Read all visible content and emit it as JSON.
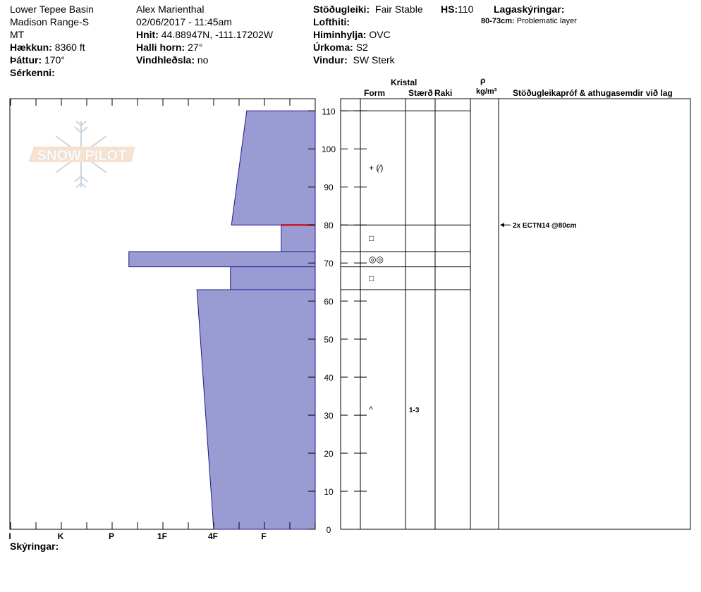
{
  "header": {
    "location": "Lower Tepee Basin",
    "range": "Madison Range-S",
    "state": "MT",
    "elevation_label": "Hækkun:",
    "elevation_value": "8360 ft",
    "aspect_label": "Þáttur:",
    "aspect_value": "170°",
    "features_label": "Sérkenni:",
    "observer": "Alex Marienthal",
    "datetime": "02/06/2017 - 11:45am",
    "coords_label": "Hnit:",
    "coords_value": "44.88947N, -111.17202W",
    "slope_label": "Halli horn:",
    "slope_value": "27°",
    "wind_loading_label": "Vindhleðsla:",
    "wind_loading_value": "no",
    "stability_label": "Stöðugleiki:",
    "stability_value": "Fair Stable",
    "hs_label": "HS:",
    "hs_value": "110",
    "air_temp_label": "Lofthiti:",
    "sky_label": "Himinhylja:",
    "sky_value": "OVC",
    "precip_label": "Úrkoma:",
    "precip_value": "S2",
    "wind_label": "Vindur:",
    "wind_value": "SW Sterk",
    "layer_notes_label": "Lagaskýringar:",
    "layer_note_range": "80-73cm:",
    "layer_note_text": "Problematic layer"
  },
  "logo_text": "SNOW PILOT",
  "legend_label": "Skýringar:",
  "columns": {
    "crystal": "Kristal",
    "form": "Form",
    "size": "Stærð",
    "moisture": "Raki",
    "rho": "ρ",
    "density_unit": "kg/m³",
    "tests": "Stöðugleikapróf & athugasemdir við lag"
  },
  "chart_data": {
    "type": "bar",
    "orientation": "horizontal",
    "x_categories": [
      "I",
      "K",
      "P",
      "1F",
      "4F",
      "F"
    ],
    "y_ticks": [
      0,
      10,
      20,
      30,
      40,
      50,
      60,
      70,
      80,
      90,
      100,
      110
    ],
    "ylim": [
      0,
      110
    ],
    "x_category_positions": {
      "F": 1,
      "4F": 2,
      "1F": 3,
      "P": 4,
      "K": 5,
      "I": 6
    },
    "xlim": [
      0,
      6
    ],
    "hardness_profile": [
      {
        "top": 110,
        "bottom": 80,
        "hardness_top": 1.35,
        "hardness_bottom": 1.65
      },
      {
        "top": 80,
        "bottom": 73,
        "hardness_top": 0.67,
        "hardness_bottom": 0.67
      },
      {
        "top": 73,
        "bottom": 69,
        "hardness_top": 3.67,
        "hardness_bottom": 3.67
      },
      {
        "top": 69,
        "bottom": 63,
        "hardness_top": 1.67,
        "hardness_bottom": 1.67
      },
      {
        "top": 63,
        "bottom": 0,
        "hardness_top": 2.33,
        "hardness_bottom": 2.0
      }
    ],
    "fill_color": "#9b9bd4",
    "edge_color": "#1a1a8c",
    "problem_layer_color": "#cc0000",
    "problem_layer_height": 80,
    "layer_boundaries": [
      110,
      80,
      73,
      69,
      63
    ],
    "crystals": [
      {
        "height": 95,
        "form": "+ (⁄)",
        "size": ""
      },
      {
        "height": 76.5,
        "form": "□",
        "size": ""
      },
      {
        "height": 71,
        "form": "◎◎",
        "size": ""
      },
      {
        "height": 66,
        "form": "□",
        "size": ""
      },
      {
        "height": 31.5,
        "form": "^",
        "size": "1-3"
      }
    ],
    "tests": [
      {
        "height": 80,
        "text": "2x ECTN14 @80cm"
      }
    ]
  }
}
